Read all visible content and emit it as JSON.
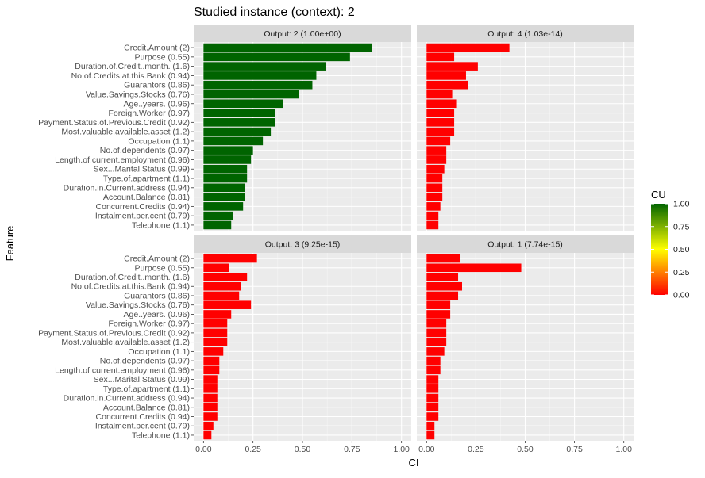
{
  "title": "Studied instance (context): 2",
  "ylabel": "Feature",
  "xlabel": "CI",
  "legend": {
    "title": "CU",
    "ticks": [
      "1.00",
      "0.75",
      "0.50",
      "0.25",
      "0.00"
    ],
    "colors": {
      "low": "#ff0000",
      "mid": "#ffff00",
      "high": "#006400"
    }
  },
  "chart_data": {
    "type": "bar",
    "orientation": "horizontal",
    "facet_layout": "2x2",
    "xlim": [
      0,
      1
    ],
    "x_ticks": [
      "0.00",
      "0.25",
      "0.50",
      "0.75",
      "1.00"
    ],
    "grid": true,
    "categories": [
      "Credit.Amount (2)",
      "Purpose (0.55)",
      "Duration.of.Credit..month. (1.6)",
      "No.of.Credits.at.this.Bank (0.94)",
      "Guarantors (0.86)",
      "Value.Savings.Stocks (0.76)",
      "Age..years. (0.96)",
      "Foreign.Worker (0.97)",
      "Payment.Status.of.Previous.Credit (0.92)",
      "Most.valuable.available.asset (1.2)",
      "Occupation (1.1)",
      "No.of.dependents (0.97)",
      "Length.of.current.employment (0.96)",
      "Sex...Marital.Status (0.99)",
      "Type.of.apartment (1.1)",
      "Duration.in.Current.address (0.94)",
      "Account.Balance (0.81)",
      "Concurrent.Credits (0.94)",
      "Instalment.per.cent (0.79)",
      "Telephone (1.1)"
    ],
    "panels": [
      {
        "strip": "Output: 2 (1.00e+00)",
        "cu": 1.0,
        "values": [
          0.85,
          0.74,
          0.62,
          0.57,
          0.55,
          0.48,
          0.4,
          0.36,
          0.36,
          0.34,
          0.3,
          0.25,
          0.24,
          0.22,
          0.22,
          0.21,
          0.21,
          0.2,
          0.15,
          0.14
        ]
      },
      {
        "strip": "Output: 4 (1.03e-14)",
        "cu": 0.0,
        "values": [
          0.42,
          0.14,
          0.26,
          0.2,
          0.21,
          0.13,
          0.15,
          0.14,
          0.14,
          0.14,
          0.12,
          0.1,
          0.1,
          0.09,
          0.08,
          0.08,
          0.08,
          0.07,
          0.06,
          0.06
        ]
      },
      {
        "strip": "Output: 3 (9.25e-15)",
        "cu": 0.0,
        "values": [
          0.27,
          0.13,
          0.22,
          0.19,
          0.18,
          0.24,
          0.14,
          0.12,
          0.12,
          0.12,
          0.1,
          0.08,
          0.08,
          0.07,
          0.07,
          0.07,
          0.07,
          0.07,
          0.05,
          0.04
        ]
      },
      {
        "strip": "Output: 1 (7.74e-15)",
        "cu": 0.0,
        "values": [
          0.17,
          0.48,
          0.16,
          0.18,
          0.16,
          0.12,
          0.12,
          0.1,
          0.1,
          0.1,
          0.09,
          0.07,
          0.07,
          0.06,
          0.06,
          0.06,
          0.06,
          0.06,
          0.04,
          0.04
        ]
      }
    ]
  }
}
